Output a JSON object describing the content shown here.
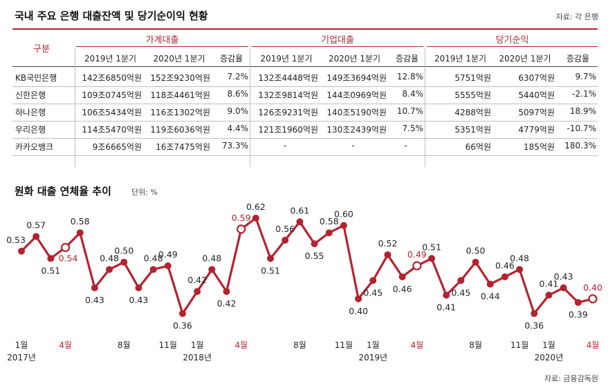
{
  "header": {
    "title": "국내 주요 은행 대출잔액 및 당기순이익 현황",
    "source": "자료: 각 은행"
  },
  "table": {
    "row_header": "구분",
    "groups": [
      "가계대출",
      "기업대출",
      "당기순익"
    ],
    "subheaders": [
      "2019년 1분기",
      "2020년 1분기",
      "증감율",
      "2019년 1분기",
      "2020년 1분기",
      "증감율",
      "2019년 1분기",
      "2020년 1분기",
      "증감율"
    ],
    "rows": [
      {
        "name": "KB국민은행",
        "cells": [
          "142조6850억원",
          "152조9230억원",
          "7.2%",
          "132조4448억원",
          "149조3694억원",
          "12.8%",
          "5751억원",
          "6307억원",
          "9.7%"
        ]
      },
      {
        "name": "신한은행",
        "cells": [
          "109조0745억원",
          "118조4461억원",
          "8.6%",
          "132조9814억원",
          "144조0969억원",
          "8.4%",
          "5555억원",
          "5440억원",
          "-2.1%"
        ]
      },
      {
        "name": "하나은행",
        "cells": [
          "106조5434억원",
          "116조1302억원",
          "9.0%",
          "126조9231억원",
          "140조5190억원",
          "10.7%",
          "4288억원",
          "5097억원",
          "18.9%"
        ]
      },
      {
        "name": "우리은행",
        "cells": [
          "114조5470억원",
          "119조6036억원",
          "4.4%",
          "121조1960억원",
          "130조2439억원",
          "7.5%",
          "5351억원",
          "4779억원",
          "-10.7%"
        ]
      },
      {
        "name": "카카오뱅크",
        "cells": [
          "9조6665억원",
          "16조7475억원",
          "73.3%",
          "-",
          "-",
          "-",
          "66억원",
          "185억원",
          "180.3%"
        ]
      }
    ]
  },
  "chart_section": {
    "title": "원화 대출 연체율 추이",
    "unit": "단위: %",
    "source": "자료: 금융감독원"
  },
  "colors": {
    "accent": "#b3232f",
    "line": "#b3232f",
    "text": "#222222",
    "highlight_label": "#b3232f"
  },
  "chart_data": {
    "type": "line",
    "title": "원화 대출 연체율 추이",
    "unit": "%",
    "x": [
      "2017-01",
      "2017-02",
      "2017-03",
      "2017-04",
      "2017-05",
      "2017-06",
      "2017-07",
      "2017-08",
      "2017-09",
      "2017-10",
      "2017-11",
      "2017-12",
      "2018-01",
      "2018-02",
      "2018-03",
      "2018-04",
      "2018-05",
      "2018-06",
      "2018-07",
      "2018-08",
      "2018-09",
      "2018-10",
      "2018-11",
      "2018-12",
      "2019-01",
      "2019-02",
      "2019-03",
      "2019-04",
      "2019-05",
      "2019-06",
      "2019-07",
      "2019-08",
      "2019-09",
      "2019-10",
      "2019-11",
      "2019-12",
      "2020-01",
      "2020-02",
      "2020-03",
      "2020-04"
    ],
    "values": [
      0.53,
      0.57,
      0.51,
      0.54,
      0.58,
      0.43,
      0.48,
      0.5,
      0.43,
      0.48,
      0.49,
      0.36,
      0.42,
      0.48,
      0.42,
      0.59,
      0.62,
      0.51,
      0.56,
      0.61,
      0.55,
      0.58,
      0.6,
      0.4,
      0.45,
      0.52,
      0.46,
      0.49,
      0.51,
      0.41,
      0.45,
      0.5,
      0.44,
      0.46,
      0.48,
      0.36,
      0.41,
      0.43,
      0.39,
      0.4
    ],
    "highlighted": [
      "2017-04",
      "2018-04",
      "2019-04",
      "2020-04"
    ],
    "x_tick_labels": [
      {
        "label": "1월",
        "sub": "2017년",
        "highlight": false
      },
      {
        "label": "4월",
        "sub": "",
        "highlight": true
      },
      {
        "label": "8월",
        "sub": "",
        "highlight": false
      },
      {
        "label": "11월",
        "sub": "",
        "highlight": false
      },
      {
        "label": "1월",
        "sub": "2018년",
        "highlight": false
      },
      {
        "label": "4월",
        "sub": "",
        "highlight": true
      },
      {
        "label": "8월",
        "sub": "",
        "highlight": false
      },
      {
        "label": "11월",
        "sub": "",
        "highlight": false
      },
      {
        "label": "1월",
        "sub": "2019년",
        "highlight": false
      },
      {
        "label": "4월",
        "sub": "",
        "highlight": true
      },
      {
        "label": "8월",
        "sub": "",
        "highlight": false
      },
      {
        "label": "11월",
        "sub": "",
        "highlight": false
      },
      {
        "label": "1월",
        "sub": "2020년",
        "highlight": false
      },
      {
        "label": "4월",
        "sub": "",
        "highlight": true
      }
    ],
    "tick_months": [
      "2017-01",
      "2017-04",
      "2017-08",
      "2017-11",
      "2018-01",
      "2018-04",
      "2018-08",
      "2018-11",
      "2019-01",
      "2019-04",
      "2019-08",
      "2019-11",
      "2020-01",
      "2020-04"
    ],
    "ylim": [
      0.33,
      0.65
    ],
    "grid": false,
    "legend": "none"
  }
}
